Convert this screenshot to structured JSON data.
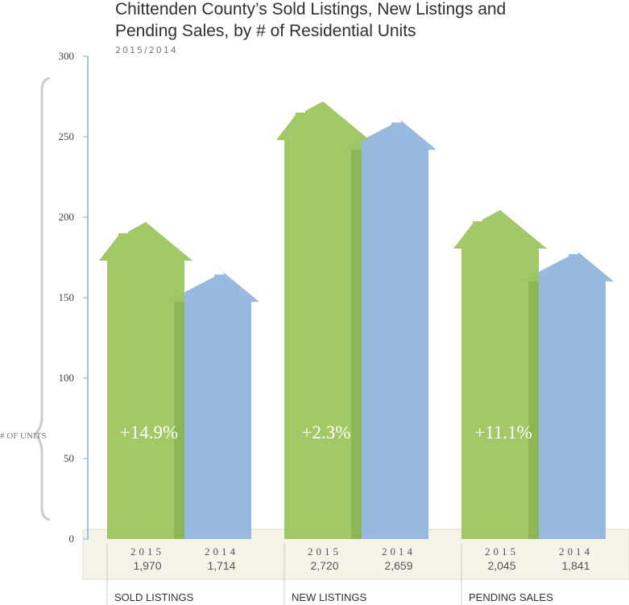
{
  "chart_data": {
    "type": "bar",
    "title_line1": "Chittenden County’s Sold Listings, New Listings and",
    "title_line2": "Pending Sales, by # of Residential Units",
    "subtitle": "2015/2014",
    "ylabel": "# OF UNITS",
    "ylim": [
      0,
      300
    ],
    "yticks": [
      0,
      50,
      100,
      150,
      200,
      250,
      300
    ],
    "categories": [
      "SOLD LISTINGS",
      "NEW LISTINGS",
      "PENDING SALES"
    ],
    "series": [
      {
        "name": "2015",
        "values": [
          1970,
          2720,
          2045
        ],
        "color": "#9dc55f"
      },
      {
        "name": "2014",
        "values": [
          1714,
          2659,
          1841
        ],
        "color": "#97bade"
      }
    ],
    "changes": [
      "+14.9%",
      "+2.3%",
      "+11.1%"
    ]
  }
}
